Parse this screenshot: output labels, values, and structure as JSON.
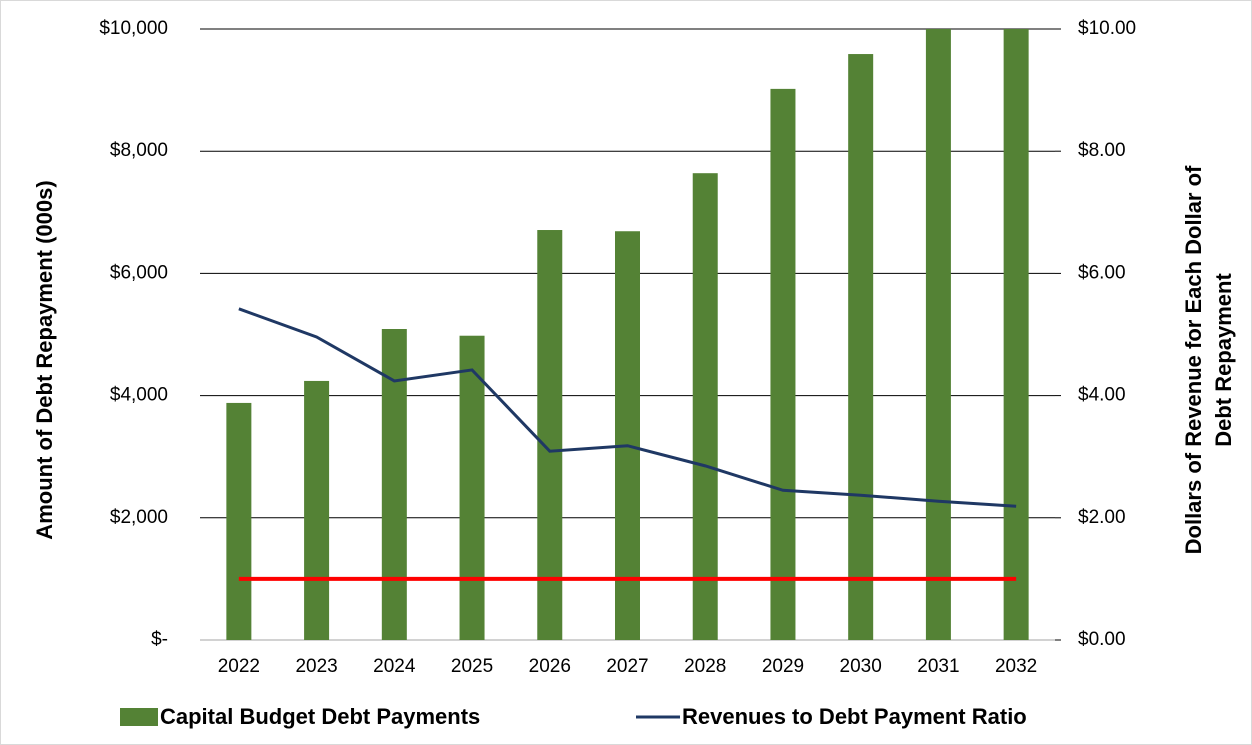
{
  "chart_data": {
    "type": "bar-line",
    "categories": [
      "2022",
      "2023",
      "2024",
      "2025",
      "2026",
      "2027",
      "2028",
      "2029",
      "2030",
      "2031",
      "2032"
    ],
    "ylabel": "Amount of Debt Repayment (000s)",
    "y2label": [
      "Dollars of Revenue for Each Dollar of",
      "Debt Repayment"
    ],
    "ylim": [
      0,
      10000
    ],
    "yticks": [
      {
        "value": 0,
        "label": "$-"
      },
      {
        "value": 2000,
        "label": "$2,000"
      },
      {
        "value": 4000,
        "label": "$4,000"
      },
      {
        "value": 6000,
        "label": "$6,000"
      },
      {
        "value": 8000,
        "label": "$8,000"
      },
      {
        "value": 10000,
        "label": "$10,000"
      }
    ],
    "y2lim": [
      0,
      10
    ],
    "y2ticks": [
      {
        "value": 0,
        "label": "$0.00"
      },
      {
        "value": 2,
        "label": "$2.00"
      },
      {
        "value": 4,
        "label": "$4.00"
      },
      {
        "value": 6,
        "label": "$6.00"
      },
      {
        "value": 8,
        "label": "$8.00"
      },
      {
        "value": 10,
        "label": "$10.00"
      }
    ],
    "grid": true,
    "legend": "bottom",
    "series": [
      {
        "name": "Capital Budget Debt Payments",
        "type": "bar",
        "color": "#548235",
        "values": [
          3880,
          4240,
          5090,
          4980,
          6710,
          6690,
          7640,
          9020,
          9590,
          10000,
          10000
        ]
      },
      {
        "name": "Revenues to Debt Payment Ratio",
        "type": "line",
        "axis": "y2",
        "color": "#1f3864",
        "values": [
          5.42,
          4.96,
          4.24,
          4.42,
          3.09,
          3.18,
          2.85,
          2.45,
          2.37,
          2.27,
          2.19
        ]
      },
      {
        "type": "line",
        "axis": "y2",
        "color": "#ff0000",
        "values": [
          1,
          1,
          1,
          1,
          1,
          1,
          1,
          1,
          1,
          1,
          1
        ]
      }
    ]
  }
}
